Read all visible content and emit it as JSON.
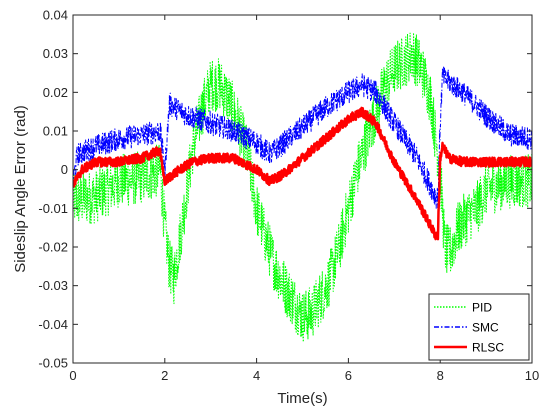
{
  "chart_data": {
    "type": "line",
    "title": "",
    "xlabel": "Time(s)",
    "ylabel": "Sideslip Angle Error (rad)",
    "xlim": [
      0,
      10
    ],
    "ylim": [
      -0.05,
      0.04
    ],
    "xticks": [
      0,
      2,
      4,
      6,
      8,
      10
    ],
    "yticks": [
      0.04,
      0.03,
      0.02,
      0.01,
      0,
      -0.01,
      -0.02,
      -0.03,
      -0.04,
      -0.05
    ],
    "xtick_labels": [
      "0",
      "2",
      "4",
      "6",
      "8",
      "10"
    ],
    "ytick_labels": [
      "0.04",
      "0.03",
      "0.02",
      "0.01",
      "0",
      "-0.01",
      "-0.02",
      "-0.03",
      "-0.04",
      "-0.05"
    ],
    "grid": false,
    "legend_position": "bottom-right",
    "series": [
      {
        "name": "PID",
        "color": "#00ff00",
        "style": "dotted",
        "noise_amplitude": 0.007,
        "x": [
          0,
          0.5,
          1.0,
          1.5,
          1.9,
          2.0,
          2.1,
          2.2,
          2.4,
          2.6,
          2.8,
          3.0,
          3.2,
          3.4,
          3.6,
          3.8,
          4.0,
          4.2,
          4.4,
          4.6,
          4.8,
          5.0,
          5.2,
          5.4,
          5.6,
          5.8,
          6.0,
          6.2,
          6.4,
          6.6,
          6.8,
          7.0,
          7.2,
          7.4,
          7.6,
          7.8,
          7.9,
          8.0,
          8.1,
          8.2,
          8.4,
          8.6,
          8.8,
          9.0,
          9.5,
          10.0
        ],
        "y": [
          -0.008,
          -0.007,
          -0.003,
          -0.002,
          0.0,
          -0.015,
          -0.025,
          -0.028,
          -0.012,
          0.005,
          0.015,
          0.022,
          0.022,
          0.018,
          0.012,
          0.004,
          -0.01,
          -0.018,
          -0.025,
          -0.03,
          -0.034,
          -0.038,
          -0.037,
          -0.033,
          -0.028,
          -0.02,
          -0.01,
          0.0,
          0.008,
          0.015,
          0.022,
          0.026,
          0.028,
          0.03,
          0.026,
          0.018,
          0.008,
          0.0,
          -0.02,
          -0.022,
          -0.015,
          -0.012,
          -0.01,
          -0.005,
          -0.003,
          -0.003
        ]
      },
      {
        "name": "SMC",
        "color": "#0000ff",
        "style": "dashdot",
        "noise_amplitude": 0.003,
        "x": [
          0,
          0.1,
          0.5,
          1.0,
          1.5,
          1.9,
          2.0,
          2.1,
          2.5,
          3.0,
          3.5,
          4.0,
          4.3,
          4.5,
          5.0,
          5.5,
          6.0,
          6.3,
          6.6,
          7.0,
          7.5,
          7.9,
          7.95,
          8.0,
          8.05,
          8.5,
          9.0,
          9.5,
          10.0
        ],
        "y": [
          -0.003,
          0.004,
          0.006,
          0.008,
          0.009,
          0.01,
          0.0,
          0.017,
          0.014,
          0.012,
          0.01,
          0.007,
          0.004,
          0.006,
          0.011,
          0.016,
          0.02,
          0.022,
          0.02,
          0.012,
          0.003,
          -0.007,
          -0.007,
          0.012,
          0.024,
          0.02,
          0.014,
          0.009,
          0.008
        ]
      },
      {
        "name": "RLSC",
        "color": "#ff0000",
        "style": "solid",
        "noise_amplitude": 0.0012,
        "x": [
          0,
          0.2,
          0.5,
          1.0,
          1.5,
          1.9,
          1.95,
          2.0,
          2.2,
          2.6,
          3.0,
          3.5,
          4.0,
          4.3,
          4.6,
          5.0,
          5.5,
          6.0,
          6.3,
          6.6,
          7.0,
          7.5,
          7.9,
          7.95,
          8.0,
          8.05,
          8.2,
          8.5,
          9.0,
          9.5,
          10.0
        ],
        "y": [
          -0.004,
          0.0,
          0.002,
          0.002,
          0.003,
          0.005,
          0.0,
          -0.003,
          -0.001,
          0.002,
          0.003,
          0.003,
          0.0,
          -0.003,
          -0.001,
          0.003,
          0.008,
          0.013,
          0.015,
          0.012,
          0.002,
          -0.008,
          -0.017,
          -0.017,
          0.003,
          0.006,
          0.003,
          0.002,
          0.002,
          0.002,
          0.002
        ]
      }
    ]
  }
}
